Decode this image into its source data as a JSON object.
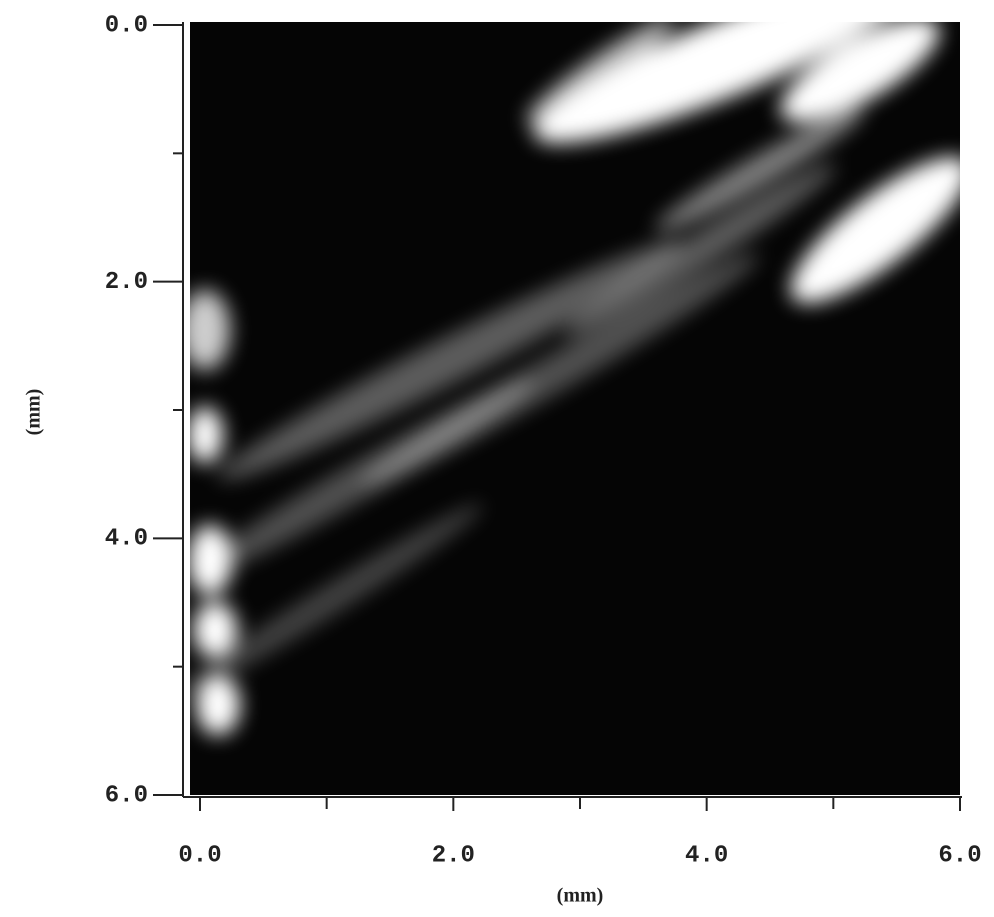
{
  "chart_data": {
    "type": "image",
    "x_label": "(mm)",
    "y_label": "(mm)",
    "xlim": [
      0,
      6
    ],
    "ylim": [
      6,
      0
    ],
    "xticks": [
      {
        "value": 0,
        "label": "0.0"
      },
      {
        "value": 2,
        "label": "2.0"
      },
      {
        "value": 4,
        "label": "4.0"
      },
      {
        "value": 6,
        "label": "6.0"
      }
    ],
    "yticks": [
      {
        "value": 0,
        "label": "0.0"
      },
      {
        "value": 2,
        "label": "2.0"
      },
      {
        "value": 4,
        "label": "4.0"
      },
      {
        "value": 6,
        "label": "6.0"
      }
    ],
    "xminorticks": [
      1,
      3,
      5
    ],
    "yminorticks": [
      1,
      3,
      5
    ]
  }
}
